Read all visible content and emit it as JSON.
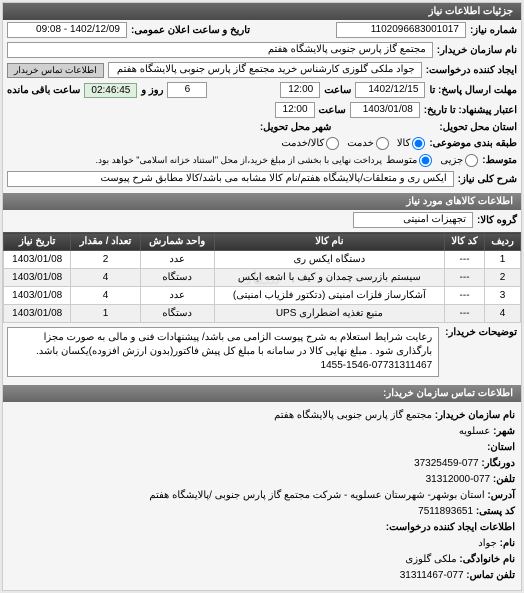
{
  "panel_title": "جزئیات اطلاعات نیاز",
  "fields": {
    "request_no_label": "شماره نیاز:",
    "request_no": "1102096683001017",
    "announce_label": "تاریخ و ساعت اعلان عمومی:",
    "announce_value": "1402/12/09 - 09:08",
    "buyer_label": "نام سازمان خریدار:",
    "buyer_value": "مجتمع گاز پارس جنوبی  پالایشگاه هفتم",
    "creator_label": "ایجاد کننده درخواست:",
    "creator_value": "جواد ملکی گلوزی کارشناس خرید مجتمع گاز پارس جنوبی  پالایشگاه هفتم",
    "contact_btn": "اطلاعات تماس خریدار",
    "deadline_send_label": "مهلت ارسال پاسخ: تا",
    "deadline_date": "1402/12/15",
    "time_label": "ساعت",
    "deadline_time": "12:00",
    "remaining_days": "6",
    "days_label": "روز و",
    "remaining_time": "02:46:45",
    "remain_label": "ساعت باقی مانده",
    "validity_label": "اعتبار پیشنهاد: تا تاریخ:",
    "validity_date": "1403/01/08",
    "validity_time": "12:00",
    "delivery_province_label": "استان محل تحویل:",
    "delivery_city_label": "شهر محل تحویل:",
    "packaging_label": "طبقه بندی موضوعی:",
    "pkg_opt1": "کالا",
    "pkg_opt2": "خدمت",
    "pkg_opt3": "کالا/خدمت",
    "medium_label": "متوسط:",
    "med_opt1": "جزیی",
    "med_opt2": "متوسط",
    "med_note": "پرداخت نهایی با بخشی از مبلغ خرید،از محل \"استناد خزانه اسلامی\" خواهد بود.",
    "main_desc_label": "شرح کلی نیاز:",
    "main_desc_value": "ایکس ری و متعلقات/پالایشگاه هفتم/نام کالا مشابه می باشد/کالا مطابق شرح پیوست",
    "goods_band": "اطلاعات کالاهای مورد نیاز",
    "group_label": "گروه کالا:",
    "group_value": "تجهیزات امنیتی"
  },
  "table": {
    "columns": [
      "ردیف",
      "کد کالا",
      "نام کالا",
      "واحد شمارش",
      "تعداد / مقدار",
      "تاریخ نیاز"
    ],
    "rows": [
      [
        "1",
        "---",
        "دستگاه ایکس ری",
        "عدد",
        "2",
        "1403/01/08"
      ],
      [
        "2",
        "---",
        "سیستم بازرسی چمدان و کیف با اشعه ایکس",
        "دستگاه",
        "4",
        "1403/01/08"
      ],
      [
        "3",
        "---",
        "آشکارساز فلزات امنیتی (دتکتور فلزیاب امنیتی)",
        "عدد",
        "4",
        "1403/01/08"
      ],
      [
        "4",
        "---",
        "منبع تغذیه اضطراری UPS",
        "دستگاه",
        "1",
        "1403/01/08"
      ]
    ]
  },
  "purchase_desc_label": "توضیحات خریدار:",
  "purchase_desc_value": "رعایت شرایط استعلام به شرح پیوست الزامی می باشد/ پیشنهادات فنی و مالی به صورت مجزا بارگذاری شود . مبلغ نهایی کالا در سامانه با مبلغ کل پیش فاکتور(بدون ارزش افزوده)یکسان باشد.  07731311467-1546-1455",
  "contact_band": "اطلاعات تماس سازمان خریدار:",
  "contact": {
    "org_label": "نام سازمان خریدار:",
    "org_value": "مجتمع گاز پارس جنوبی پالایشگاه هفتم",
    "city_label": "شهر:",
    "city_value": "عسلویه",
    "province_label": "استان:",
    "fax_label": "دورنگار:",
    "fax_value": "077-37325459",
    "phone_label": "تلفن:",
    "phone_value": "077-31312000",
    "address_label": "آدرس:",
    "address_value": "استان بوشهر- شهرستان عسلویه - شرکت مجتمع گاز پارس جنوبی /پالایشگاه هفتم",
    "postal_label": "کد پستی:",
    "postal_value": "7511893651",
    "creator_info_label": "اطلاعات ایجاد کننده درخواست:",
    "name_label": "نام:",
    "name_value": "جواد",
    "family_label": "نام خانوادگی:",
    "family_value": "ملکی گلوزی",
    "tel_label": "تلفن تماس:",
    "tel_value": "077-31311467"
  }
}
